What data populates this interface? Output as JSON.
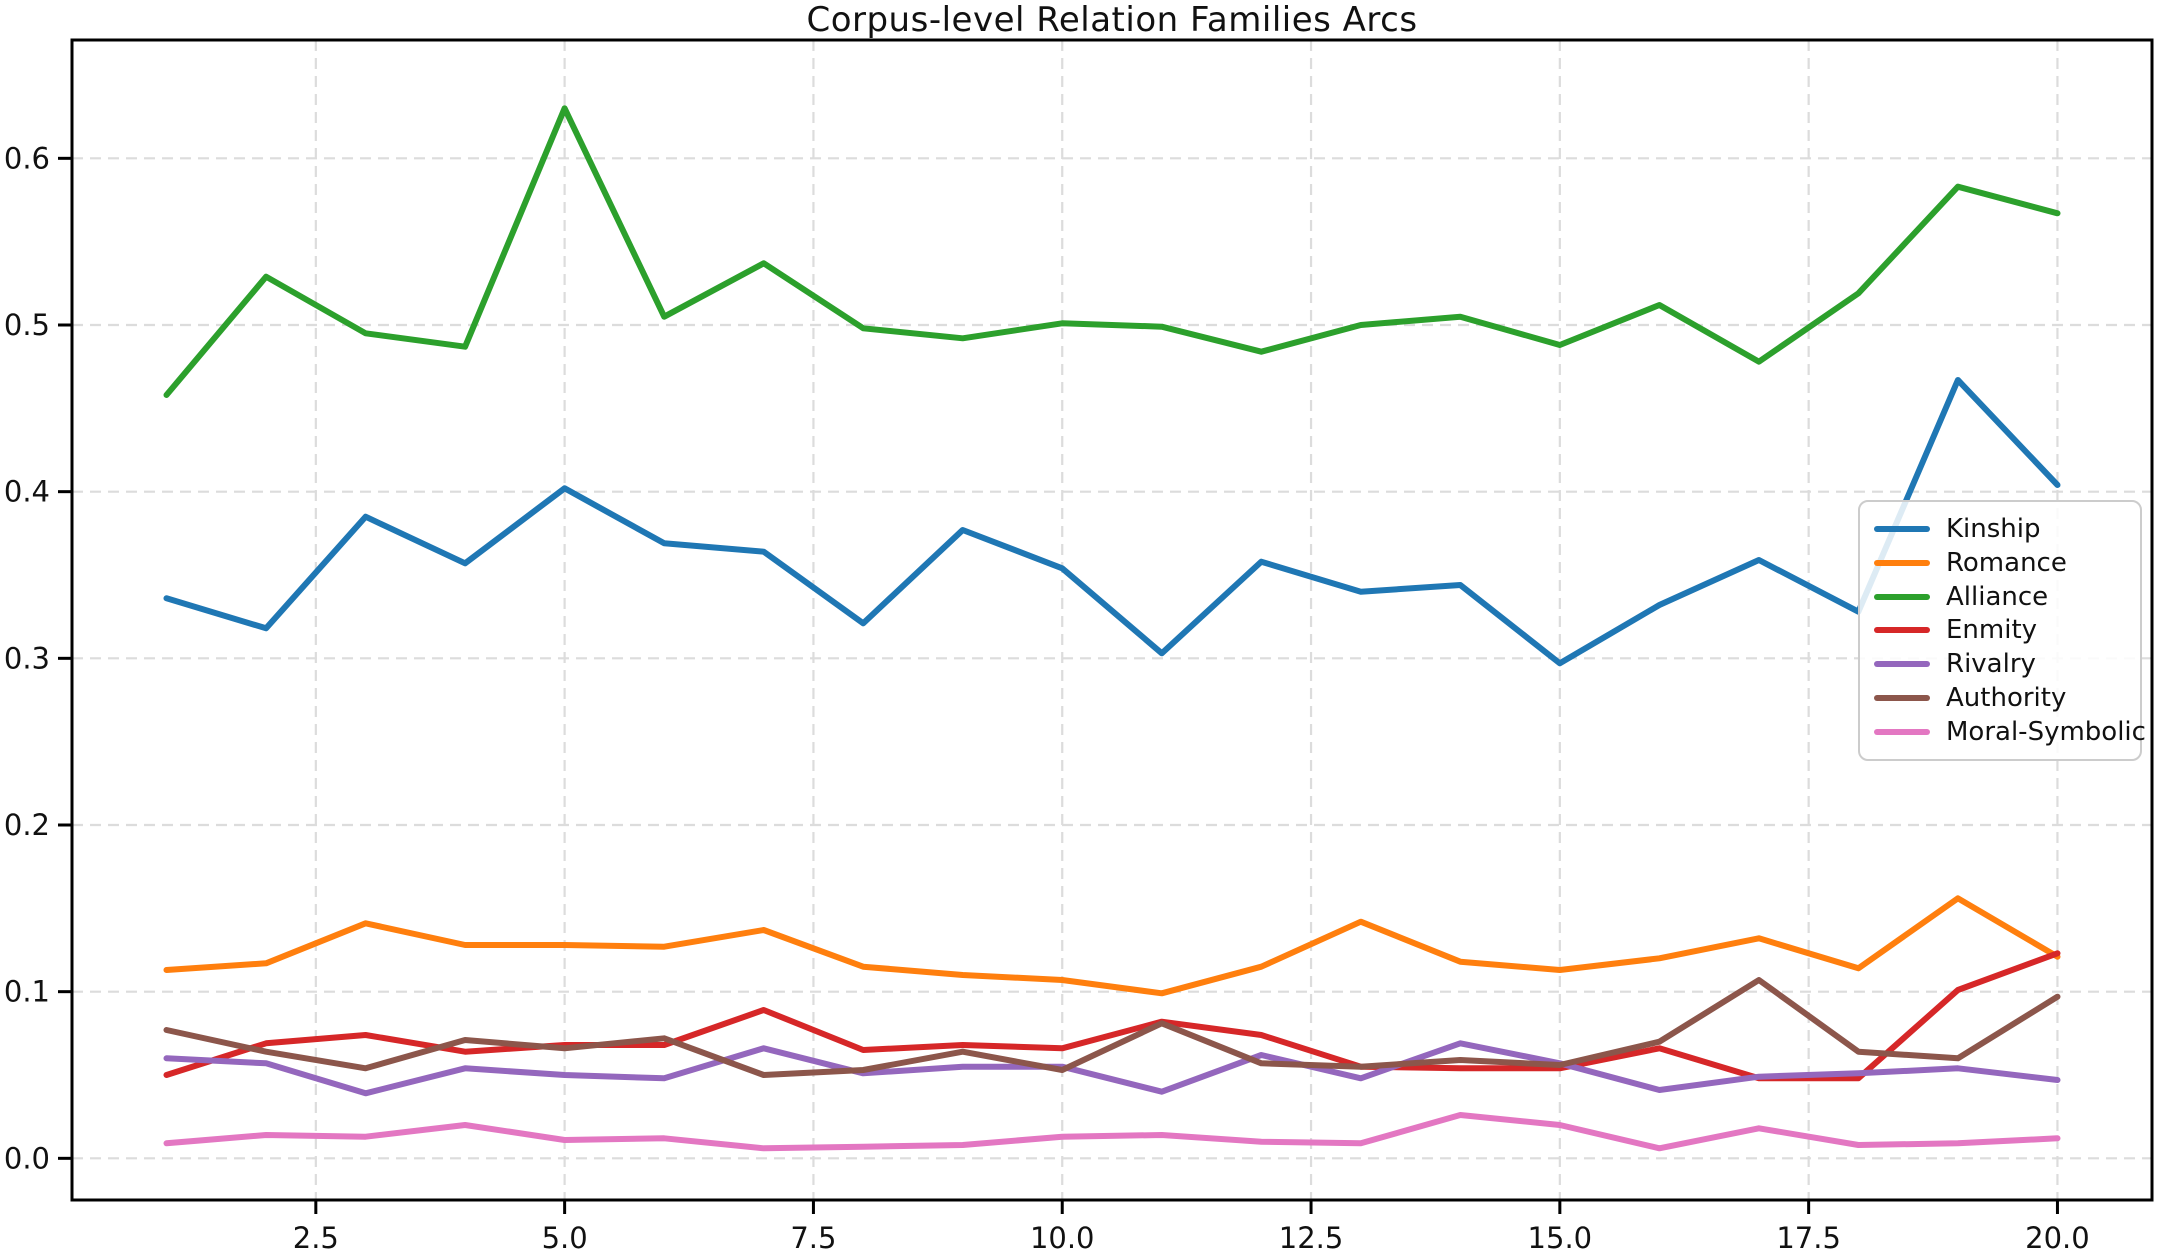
{
  "chart_data": {
    "type": "line",
    "title": "Corpus-level Relation Families Arcs",
    "xlabel": "",
    "ylabel": "",
    "grid": true,
    "grid_style": "dashed",
    "legend_position": "center right",
    "xlim": [
      0.05,
      20.95
    ],
    "ylim": [
      -0.025,
      0.671
    ],
    "x": [
      1,
      2,
      3,
      4,
      5,
      6,
      7,
      8,
      9,
      10,
      11,
      12,
      13,
      14,
      15,
      16,
      17,
      18,
      19,
      20
    ],
    "xtick_labels": [
      "2.5",
      "5.0",
      "7.5",
      "10.0",
      "12.5",
      "15.0",
      "17.5",
      "20.0"
    ],
    "xtick_values": [
      2.5,
      5.0,
      7.5,
      10.0,
      12.5,
      15.0,
      17.5,
      20.0
    ],
    "ytick_labels": [
      "0.0",
      "0.1",
      "0.2",
      "0.3",
      "0.4",
      "0.5",
      "0.6"
    ],
    "ytick_values": [
      0.0,
      0.1,
      0.2,
      0.3,
      0.4,
      0.5,
      0.6
    ],
    "series": [
      {
        "name": "Kinship",
        "color": "#1f77b4",
        "values": [
          0.336,
          0.318,
          0.385,
          0.357,
          0.402,
          0.369,
          0.364,
          0.321,
          0.377,
          0.354,
          0.303,
          0.358,
          0.34,
          0.344,
          0.297,
          0.332,
          0.359,
          0.328,
          0.467,
          0.404
        ]
      },
      {
        "name": "Romance",
        "color": "#ff7f0e",
        "values": [
          0.113,
          0.117,
          0.141,
          0.128,
          0.128,
          0.127,
          0.137,
          0.115,
          0.11,
          0.107,
          0.099,
          0.115,
          0.142,
          0.118,
          0.113,
          0.12,
          0.132,
          0.114,
          0.156,
          0.121
        ]
      },
      {
        "name": "Alliance",
        "color": "#2ca02c",
        "values": [
          0.458,
          0.529,
          0.495,
          0.487,
          0.63,
          0.505,
          0.537,
          0.498,
          0.492,
          0.501,
          0.499,
          0.484,
          0.5,
          0.505,
          0.488,
          0.512,
          0.478,
          0.519,
          0.583,
          0.567
        ]
      },
      {
        "name": "Enmity",
        "color": "#d62728",
        "values": [
          0.05,
          0.069,
          0.074,
          0.064,
          0.068,
          0.068,
          0.089,
          0.065,
          0.068,
          0.066,
          0.082,
          0.074,
          0.055,
          0.054,
          0.054,
          0.066,
          0.048,
          0.048,
          0.101,
          0.123
        ]
      },
      {
        "name": "Rivalry",
        "color": "#9467bd",
        "values": [
          0.06,
          0.057,
          0.039,
          0.054,
          0.05,
          0.048,
          0.066,
          0.051,
          0.055,
          0.055,
          0.04,
          0.062,
          0.048,
          0.069,
          0.057,
          0.041,
          0.049,
          0.051,
          0.054,
          0.047
        ]
      },
      {
        "name": "Authority",
        "color": "#8c564b",
        "values": [
          0.077,
          0.064,
          0.054,
          0.071,
          0.066,
          0.072,
          0.05,
          0.053,
          0.064,
          0.053,
          0.081,
          0.057,
          0.055,
          0.059,
          0.056,
          0.07,
          0.107,
          0.064,
          0.06,
          0.097
        ]
      },
      {
        "name": "Moral-Symbolic",
        "color": "#e377c2",
        "values": [
          0.009,
          0.014,
          0.013,
          0.02,
          0.011,
          0.012,
          0.006,
          0.007,
          0.008,
          0.013,
          0.014,
          0.01,
          0.009,
          0.026,
          0.02,
          0.006,
          0.018,
          0.008,
          0.009,
          0.012
        ]
      }
    ]
  }
}
